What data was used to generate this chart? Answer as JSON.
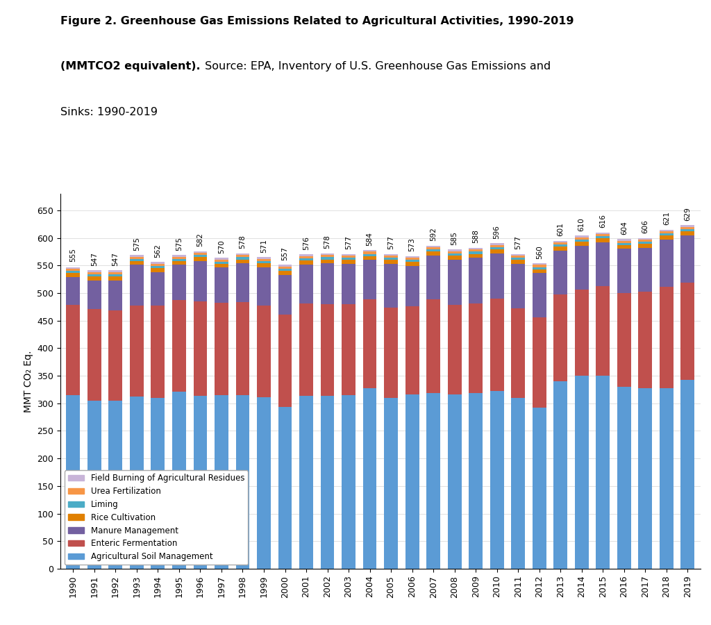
{
  "years": [
    1990,
    1991,
    1992,
    1993,
    1994,
    1995,
    1996,
    1997,
    1998,
    1999,
    2000,
    2001,
    2002,
    2003,
    2004,
    2005,
    2006,
    2007,
    2008,
    2009,
    2010,
    2011,
    2012,
    2013,
    2014,
    2015,
    2016,
    2017,
    2018,
    2019
  ],
  "totals": [
    555,
    547,
    547,
    575,
    562,
    575,
    582,
    570,
    578,
    571,
    557,
    576,
    578,
    577,
    584,
    577,
    573,
    592,
    585,
    588,
    596,
    577,
    560,
    601,
    610,
    616,
    604,
    606,
    621,
    629
  ],
  "agricultural_soil": [
    315,
    305,
    305,
    312,
    310,
    321,
    314,
    315,
    315,
    311,
    294,
    314,
    313,
    315,
    328,
    310,
    316,
    318,
    316,
    318,
    322,
    310,
    292,
    340,
    350,
    350,
    330,
    327,
    327,
    343
  ],
  "enteric_fermentation": [
    163,
    166,
    163,
    165,
    167,
    166,
    171,
    167,
    168,
    166,
    167,
    167,
    167,
    165,
    161,
    164,
    160,
    171,
    163,
    163,
    168,
    162,
    164,
    158,
    156,
    162,
    170,
    175,
    184,
    176
  ],
  "manure_management": [
    51,
    52,
    55,
    74,
    61,
    64,
    73,
    64,
    71,
    70,
    72,
    71,
    74,
    73,
    71,
    79,
    73,
    79,
    82,
    83,
    82,
    81,
    80,
    79,
    80,
    80,
    80,
    80,
    86,
    86
  ],
  "rice_cultivation": [
    7,
    7,
    7,
    7,
    7,
    7,
    7,
    7,
    7,
    7,
    7,
    7,
    7,
    7,
    7,
    7,
    7,
    7,
    7,
    7,
    7,
    7,
    7,
    7,
    7,
    7,
    7,
    7,
    7,
    7
  ],
  "liming": [
    4,
    4,
    4,
    4,
    4,
    4,
    4,
    4,
    4,
    4,
    4,
    4,
    4,
    4,
    4,
    4,
    4,
    4,
    4,
    4,
    4,
    4,
    4,
    4,
    4,
    4,
    4,
    4,
    4,
    4
  ],
  "urea_fertilization": [
    4,
    4,
    4,
    4,
    4,
    4,
    4,
    4,
    4,
    4,
    4,
    4,
    4,
    4,
    4,
    4,
    4,
    4,
    4,
    4,
    4,
    4,
    4,
    4,
    4,
    4,
    4,
    4,
    4,
    4
  ],
  "field_burning": [
    3,
    3,
    3,
    3,
    3,
    3,
    3,
    3,
    3,
    3,
    3,
    3,
    3,
    3,
    3,
    3,
    3,
    3,
    3,
    3,
    3,
    3,
    3,
    3,
    3,
    3,
    3,
    3,
    3,
    3
  ],
  "colors": {
    "agricultural_soil": "#5B9BD5",
    "enteric_fermentation": "#C0504D",
    "manure_management": "#7360A0",
    "rice_cultivation": "#E08000",
    "liming": "#4BACC6",
    "urea_fertilization": "#F79646",
    "field_burning": "#C8B4D8"
  },
  "ylabel": "MMT CO₂ Eq.",
  "ylim": [
    0,
    680
  ],
  "yticks": [
    0,
    50,
    100,
    150,
    200,
    250,
    300,
    350,
    400,
    450,
    500,
    550,
    600,
    650
  ],
  "legend_labels": [
    "Field Burning of Agricultural Residues",
    "Urea Fertilization",
    "Liming",
    "Rice Cultivation",
    "Manure Management",
    "Enteric Fermentation",
    "Agricultural Soil Management"
  ],
  "legend_colors": [
    "#C8B4D8",
    "#F79646",
    "#4BACC6",
    "#E08000",
    "#7360A0",
    "#C0504D",
    "#5B9BD5"
  ],
  "background_color": "#FFFFFF",
  "title_line1_bold": "Figure 2. Greenhouse Gas Emissions Related to Agricultural Activities, 1990-2019",
  "title_line2_bold": "(MMTCO2 equivalent).",
  "title_line2_normal": " Source: EPA, Inventory of U.S. Greenhouse Gas Emissions and",
  "title_line3_normal": "Sinks: 1990-2019"
}
